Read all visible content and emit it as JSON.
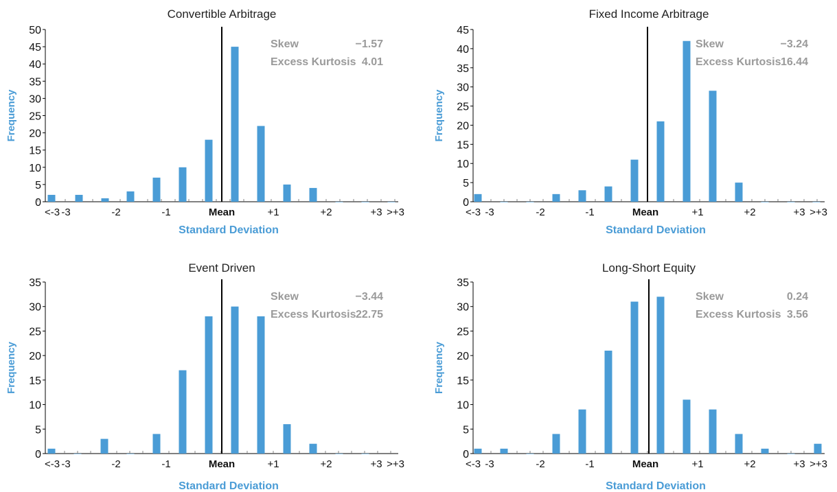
{
  "colors": {
    "bar": "#4a9cd6",
    "axis": "#000000",
    "label_blue": "#4a9cd6",
    "stats_gray": "#9a9a9a"
  },
  "chart_data": [
    {
      "type": "bar",
      "title": "Convertible Arbitrage",
      "xlabel": "Standard Deviation",
      "ylabel": "Frequency",
      "ylim": [
        0,
        50
      ],
      "yticks": [
        0,
        5,
        10,
        15,
        20,
        25,
        30,
        35,
        40,
        45,
        50
      ],
      "x_tick_labels": [
        "<-3",
        "-3",
        "-2",
        "-1",
        "Mean",
        "+1",
        "+2",
        "+3",
        ">+3"
      ],
      "values": [
        2,
        2,
        1,
        3,
        7,
        10,
        18,
        45,
        22,
        5,
        4,
        0,
        0,
        0
      ],
      "stats": {
        "skew_label": "Skew",
        "skew": "−1.57",
        "kurtosis_label": "Excess Kurtosis",
        "kurtosis": "4.01"
      }
    },
    {
      "type": "bar",
      "title": "Fixed Income Arbitrage",
      "xlabel": "Standard Deviation",
      "ylabel": "Frequency",
      "ylim": [
        0,
        45
      ],
      "yticks": [
        0,
        5,
        10,
        15,
        20,
        25,
        30,
        35,
        40,
        45
      ],
      "x_tick_labels": [
        "<-3",
        "-3",
        "-2",
        "-1",
        "Mean",
        "+1",
        "+2",
        "+3",
        ">+3"
      ],
      "values": [
        2,
        0,
        0,
        2,
        3,
        4,
        11,
        21,
        42,
        29,
        5,
        0,
        0,
        0,
        0,
        0,
        0
      ],
      "stats": {
        "skew_label": "Skew",
        "skew": "−3.24",
        "kurtosis_label": "Excess Kurtosis",
        "kurtosis": "16.44"
      }
    },
    {
      "type": "bar",
      "title": "Event Driven",
      "xlabel": "Standard Deviation",
      "ylabel": "Frequency",
      "ylim": [
        0,
        35
      ],
      "yticks": [
        0,
        5,
        10,
        15,
        20,
        25,
        30,
        35
      ],
      "x_tick_labels": [
        "<-3",
        "-3",
        "-2",
        "-1",
        "Mean",
        "+1",
        "+2",
        "+3",
        ">+3"
      ],
      "values": [
        1,
        0,
        3,
        0,
        4,
        17,
        28,
        30,
        28,
        6,
        2,
        0,
        0
      ],
      "stats": {
        "skew_label": "Skew",
        "skew": "−3.44",
        "kurtosis_label": "Excess Kurtosis",
        "kurtosis": "22.75"
      }
    },
    {
      "type": "bar",
      "title": "Long-Short Equity",
      "xlabel": "Standard Deviation",
      "ylabel": "Frequency",
      "ylim": [
        0,
        35
      ],
      "yticks": [
        0,
        5,
        10,
        15,
        20,
        25,
        30,
        35
      ],
      "x_tick_labels": [
        "<-3",
        "-3",
        "-2",
        "-1",
        "Mean",
        "+1",
        "+2",
        "+3",
        ">+3"
      ],
      "values": [
        1,
        1,
        0,
        4,
        9,
        21,
        31,
        32,
        11,
        9,
        4,
        1,
        0,
        2
      ],
      "stats": {
        "skew_label": "Skew",
        "skew": "0.24",
        "kurtosis_label": "Excess Kurtosis",
        "kurtosis": "3.56"
      }
    }
  ]
}
